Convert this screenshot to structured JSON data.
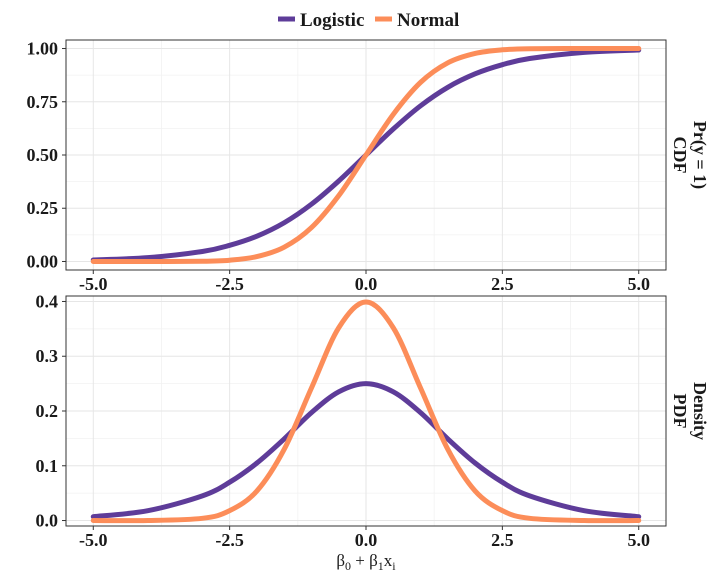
{
  "chart_data": {
    "type": "line",
    "legend": {
      "position": "top",
      "entries": [
        {
          "name": "Logistic",
          "color": "#5e3c99"
        },
        {
          "name": "Normal",
          "color": "#fc8d59"
        }
      ]
    },
    "xlabel": {
      "base": "β",
      "sub0": "0",
      "mid": " + β",
      "sub1": "1",
      "x": "x",
      "subi": "i"
    },
    "xlim": [
      -5.5,
      5.5
    ],
    "xticks": [
      -5.0,
      -2.5,
      0.0,
      2.5,
      5.0
    ],
    "xtick_labels": [
      "-5.0",
      "-2.5",
      "0.0",
      "2.5",
      "5.0"
    ],
    "grid": true,
    "panels": [
      {
        "id": "cdf",
        "strip": [
          "CDF",
          "Pr(y = 1)"
        ],
        "ylim": [
          -0.04,
          1.04
        ],
        "yticks": [
          0.0,
          0.25,
          0.5,
          0.75,
          1.0
        ],
        "ytick_labels": [
          "0.00",
          "0.25",
          "0.50",
          "0.75",
          "1.00"
        ],
        "series": [
          {
            "name": "Logistic",
            "color": "#5e3c99",
            "x": [
              -5.0,
              -4.0,
              -3.0,
              -2.5,
              -2.0,
              -1.5,
              -1.0,
              -0.5,
              0.0,
              0.5,
              1.0,
              1.5,
              2.0,
              2.5,
              3.0,
              4.0,
              5.0
            ],
            "y": [
              0.007,
              0.018,
              0.047,
              0.076,
              0.119,
              0.182,
              0.269,
              0.378,
              0.5,
              0.622,
              0.731,
              0.818,
              0.881,
              0.924,
              0.953,
              0.982,
              0.993
            ]
          },
          {
            "name": "Normal",
            "color": "#fc8d59",
            "x": [
              -5.0,
              -4.0,
              -3.0,
              -2.5,
              -2.0,
              -1.5,
              -1.0,
              -0.5,
              0.0,
              0.5,
              1.0,
              1.5,
              2.0,
              2.5,
              3.0,
              4.0,
              5.0
            ],
            "y": [
              0.0,
              0.0,
              0.001,
              0.006,
              0.023,
              0.067,
              0.159,
              0.309,
              0.5,
              0.691,
              0.841,
              0.933,
              0.977,
              0.994,
              0.999,
              1.0,
              1.0
            ]
          }
        ]
      },
      {
        "id": "pdf",
        "strip": [
          "PDF",
          "Density"
        ],
        "ylim": [
          -0.01,
          0.41
        ],
        "yticks": [
          0.0,
          0.1,
          0.2,
          0.3,
          0.4
        ],
        "ytick_labels": [
          "0.0",
          "0.1",
          "0.2",
          "0.3",
          "0.4"
        ],
        "series": [
          {
            "name": "Logistic",
            "color": "#5e3c99",
            "x": [
              -5.0,
              -4.0,
              -3.0,
              -2.5,
              -2.0,
              -1.5,
              -1.0,
              -0.5,
              0.0,
              0.5,
              1.0,
              1.5,
              2.0,
              2.5,
              3.0,
              4.0,
              5.0
            ],
            "y": [
              0.007,
              0.018,
              0.045,
              0.07,
              0.105,
              0.149,
              0.197,
              0.235,
              0.25,
              0.235,
              0.197,
              0.149,
              0.105,
              0.07,
              0.045,
              0.018,
              0.007
            ]
          },
          {
            "name": "Normal",
            "color": "#fc8d59",
            "x": [
              -5.0,
              -4.0,
              -3.0,
              -2.5,
              -2.0,
              -1.5,
              -1.0,
              -0.5,
              0.0,
              0.5,
              1.0,
              1.5,
              2.0,
              2.5,
              3.0,
              4.0,
              5.0
            ],
            "y": [
              0.0,
              0.0,
              0.004,
              0.018,
              0.054,
              0.13,
              0.242,
              0.352,
              0.399,
              0.352,
              0.242,
              0.13,
              0.054,
              0.018,
              0.004,
              0.0,
              0.0
            ]
          }
        ]
      }
    ]
  }
}
